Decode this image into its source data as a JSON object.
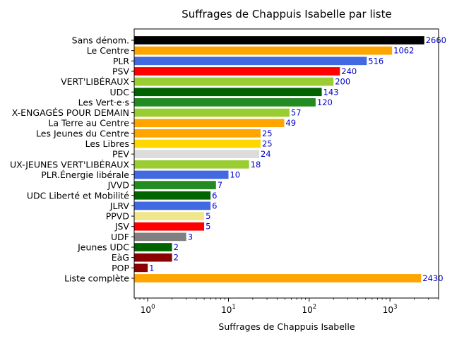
{
  "chart_data": {
    "type": "bar",
    "orientation": "horizontal",
    "title": "Suffrages de Chappuis Isabelle par liste",
    "xlabel": "Suffrages de Chappuis Isabelle",
    "ylabel": "",
    "x_scale": "log",
    "xlim": [
      0.68,
      4000
    ],
    "x_ticks": [
      {
        "base": "10",
        "exp": "0",
        "value": 1
      },
      {
        "base": "10",
        "exp": "1",
        "value": 10
      },
      {
        "base": "10",
        "exp": "2",
        "value": 100
      },
      {
        "base": "10",
        "exp": "3",
        "value": 1000
      }
    ],
    "grid": false,
    "legend": "none",
    "bars": [
      {
        "category": "Sans dénom.",
        "value": 2660,
        "label": "2660",
        "color": "#000000"
      },
      {
        "category": "Le Centre",
        "value": 1062,
        "label": "1062",
        "color": "#FFA500"
      },
      {
        "category": "PLR",
        "value": 516,
        "label": "516",
        "color": "#4169E1"
      },
      {
        "category": "PSV",
        "value": 240,
        "label": "240",
        "color": "#FF0000"
      },
      {
        "category": "VERT'LIBÉRAUX",
        "value": 200,
        "label": "200",
        "color": "#9ACD32"
      },
      {
        "category": "UDC",
        "value": 143,
        "label": "143",
        "color": "#006400"
      },
      {
        "category": "Les Vert·e·s",
        "value": 120,
        "label": "120",
        "color": "#228B22"
      },
      {
        "category": "X-ENGAGÉS POUR DEMAIN",
        "value": 57,
        "label": "57",
        "color": "#9ACD32"
      },
      {
        "category": "La Terre au Centre",
        "value": 49,
        "label": "49",
        "color": "#FFA500"
      },
      {
        "category": "Les Jeunes du Centre",
        "value": 25,
        "label": "25",
        "color": "#FFA500"
      },
      {
        "category": "Les Libres",
        "value": 25,
        "label": "25",
        "color": "#FFD700"
      },
      {
        "category": "PEV",
        "value": 24,
        "label": "24",
        "color": "#DCDCDC"
      },
      {
        "category": "UX-JEUNES VERT'LIBÉRAUX",
        "value": 18,
        "label": "18",
        "color": "#9ACD32"
      },
      {
        "category": "PLR.Énergie libérale",
        "value": 10,
        "label": "10",
        "color": "#4169E1"
      },
      {
        "category": "JVVD",
        "value": 7,
        "label": "7",
        "color": "#228B22"
      },
      {
        "category": "UDC Liberté et Mobilité",
        "value": 6,
        "label": "6",
        "color": "#006400"
      },
      {
        "category": "JLRV",
        "value": 6,
        "label": "6",
        "color": "#4169E1"
      },
      {
        "category": "PPVD",
        "value": 5,
        "label": "5",
        "color": "#F0E68C"
      },
      {
        "category": "JSV",
        "value": 5,
        "label": "5",
        "color": "#FF0000"
      },
      {
        "category": "UDF",
        "value": 3,
        "label": "3",
        "color": "#808080"
      },
      {
        "category": "Jeunes UDC",
        "value": 2,
        "label": "2",
        "color": "#006400"
      },
      {
        "category": "EàG",
        "value": 2,
        "label": "2",
        "color": "#8B0000"
      },
      {
        "category": "POP",
        "value": 1,
        "label": "1",
        "color": "#8B0000"
      },
      {
        "category": "Liste complète",
        "value": 2430,
        "label": "2430",
        "color": "#FFA500"
      }
    ]
  }
}
